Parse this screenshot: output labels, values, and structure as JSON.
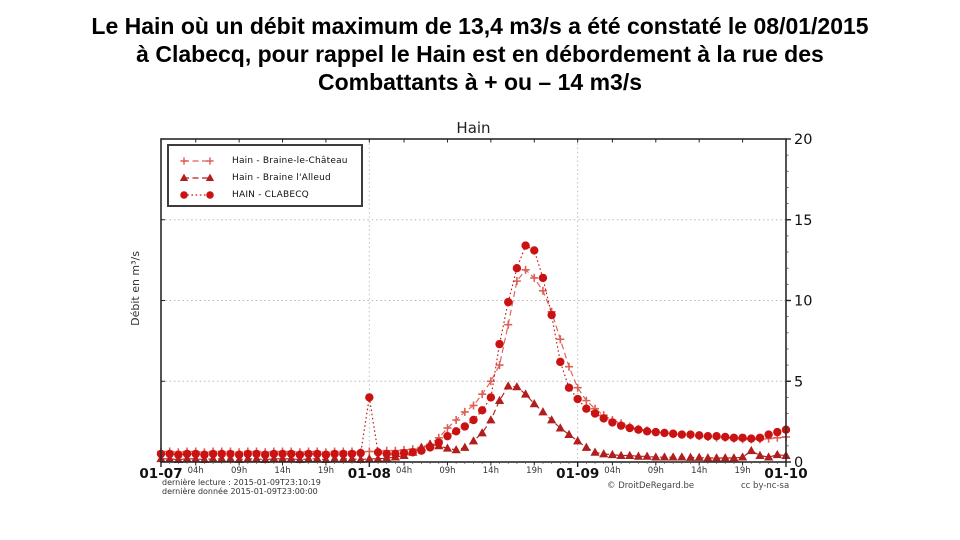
{
  "page": {
    "title": "Le Hain où un débit maximum de 13,4 m3/s a été constaté le 08/01/2015\nà Clabecq, pour rappel le Hain est en débordement à la rue des\nCombattants à + ou – 14 m3/s"
  },
  "chart_data": {
    "type": "line",
    "title": "Hain",
    "xlabel": "",
    "ylabel": "Débit en m³/s",
    "x_unit": "hours since 01-07 00:00",
    "xlim": [
      0,
      72
    ],
    "ylim": [
      0,
      20
    ],
    "y_ticks": [
      0,
      5,
      10,
      15,
      20
    ],
    "y_minor_step": 1,
    "grid": {
      "horizontal_at": [
        5,
        10,
        15
      ],
      "vertical_at": [
        24,
        48
      ]
    },
    "legend_position": "upper-left",
    "x_ticks": [
      {
        "t": 0,
        "label": "01-07",
        "kind": "day"
      },
      {
        "t": 4,
        "label": "04h",
        "kind": "hour"
      },
      {
        "t": 9,
        "label": "09h",
        "kind": "hour"
      },
      {
        "t": 14,
        "label": "14h",
        "kind": "hour"
      },
      {
        "t": 19,
        "label": "19h",
        "kind": "hour"
      },
      {
        "t": 24,
        "label": "01-08",
        "kind": "day"
      },
      {
        "t": 28,
        "label": "04h",
        "kind": "hour"
      },
      {
        "t": 33,
        "label": "09h",
        "kind": "hour"
      },
      {
        "t": 38,
        "label": "14h",
        "kind": "hour"
      },
      {
        "t": 43,
        "label": "19h",
        "kind": "hour"
      },
      {
        "t": 48,
        "label": "01-09",
        "kind": "day"
      },
      {
        "t": 52,
        "label": "04h",
        "kind": "hour"
      },
      {
        "t": 57,
        "label": "09h",
        "kind": "hour"
      },
      {
        "t": 62,
        "label": "14h",
        "kind": "hour"
      },
      {
        "t": 67,
        "label": "19h",
        "kind": "hour"
      },
      {
        "t": 72,
        "label": "01-10",
        "kind": "day"
      }
    ],
    "series": [
      {
        "name": "Hain - Braine-le-Château",
        "marker": "plus",
        "line": "dashed",
        "color": "#dd6055",
        "values": [
          0.65,
          0.65,
          0.6,
          0.65,
          0.65,
          0.6,
          0.65,
          0.65,
          0.65,
          0.6,
          0.65,
          0.65,
          0.6,
          0.65,
          0.65,
          0.65,
          0.6,
          0.65,
          0.65,
          0.6,
          0.65,
          0.65,
          0.65,
          0.6,
          0.65,
          0.65,
          0.7,
          0.7,
          0.75,
          0.8,
          0.9,
          1.1,
          1.5,
          2.1,
          2.6,
          3.1,
          3.5,
          4.2,
          5.0,
          6.0,
          8.5,
          11.2,
          11.9,
          11.4,
          10.6,
          9.3,
          7.6,
          5.9,
          4.6,
          3.8,
          3.3,
          2.9,
          2.6,
          2.4,
          2.2,
          2.05,
          1.95,
          1.85,
          1.8,
          1.75,
          1.7,
          1.65,
          1.6,
          1.55,
          1.5,
          1.5,
          1.45,
          1.4,
          1.4,
          1.4,
          1.45,
          1.5,
          1.55
        ]
      },
      {
        "name": "Hain - Braine l'Alleud",
        "marker": "triangle",
        "line": "dashed",
        "color": "#b01e1e",
        "values": [
          0.2,
          0.2,
          0.15,
          0.2,
          0.2,
          0.15,
          0.2,
          0.2,
          0.2,
          0.15,
          0.2,
          0.2,
          0.15,
          0.2,
          0.2,
          0.2,
          0.15,
          0.2,
          0.2,
          0.15,
          0.2,
          0.2,
          0.2,
          0.15,
          0.2,
          0.2,
          0.25,
          0.3,
          0.4,
          0.6,
          0.9,
          1.1,
          1.0,
          0.85,
          0.75,
          0.9,
          1.3,
          1.8,
          2.6,
          3.8,
          4.7,
          4.65,
          4.2,
          3.6,
          3.1,
          2.6,
          2.1,
          1.7,
          1.3,
          0.9,
          0.6,
          0.5,
          0.45,
          0.4,
          0.4,
          0.35,
          0.35,
          0.3,
          0.3,
          0.3,
          0.3,
          0.28,
          0.28,
          0.25,
          0.25,
          0.25,
          0.25,
          0.3,
          0.7,
          0.4,
          0.3,
          0.45,
          0.4
        ]
      },
      {
        "name": "HAIN - CLABECQ",
        "marker": "circle",
        "line": "dotted",
        "color": "#cb1212",
        "values": [
          0.5,
          0.5,
          0.45,
          0.5,
          0.5,
          0.45,
          0.5,
          0.5,
          0.5,
          0.45,
          0.5,
          0.5,
          0.45,
          0.5,
          0.5,
          0.5,
          0.45,
          0.5,
          0.5,
          0.45,
          0.5,
          0.5,
          0.5,
          0.55,
          4.0,
          0.6,
          0.5,
          0.5,
          0.55,
          0.6,
          0.7,
          0.9,
          1.2,
          1.6,
          1.9,
          2.2,
          2.6,
          3.2,
          4.0,
          7.3,
          9.9,
          12.0,
          13.4,
          13.1,
          11.4,
          9.1,
          6.2,
          4.6,
          3.9,
          3.3,
          3.0,
          2.7,
          2.45,
          2.25,
          2.1,
          2.0,
          1.9,
          1.85,
          1.8,
          1.75,
          1.7,
          1.7,
          1.65,
          1.6,
          1.6,
          1.55,
          1.5,
          1.5,
          1.45,
          1.5,
          1.7,
          1.85,
          2.0
        ]
      }
    ],
    "annotations": {
      "last_reading": "dernière lecture : 2015-01-09T23:10:19",
      "last_data": "dernière donnée  2015-01-09T23:00:00",
      "copyright": "© DroitDeRegard.be",
      "license": "cc by-nc-sa"
    }
  }
}
